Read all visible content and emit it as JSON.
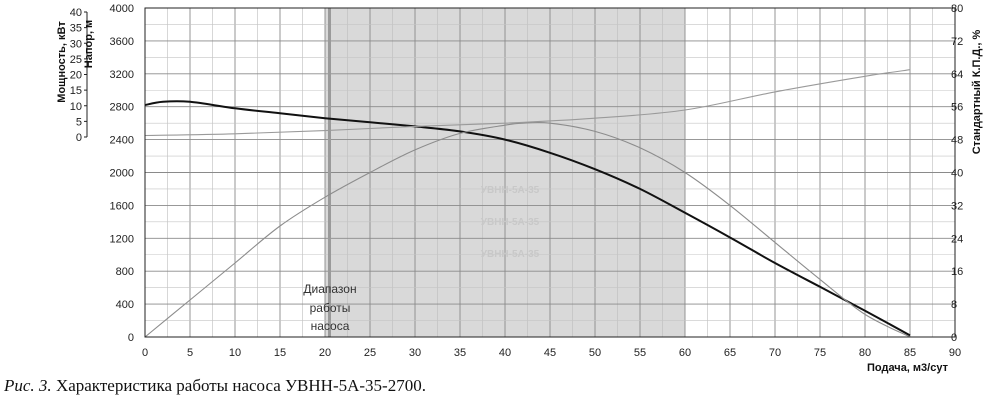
{
  "caption": {
    "figure_label": "Рис. 3.",
    "text": "Характеристика работы насоса УВНН-5А-35-2700."
  },
  "chart_data": {
    "type": "line",
    "title": "",
    "xlabel": "Подача, м3/сут",
    "xlim": [
      0,
      90
    ],
    "x_ticks": [
      0,
      5,
      10,
      15,
      20,
      25,
      30,
      35,
      40,
      45,
      50,
      55,
      60,
      65,
      70,
      75,
      80,
      85,
      90
    ],
    "y_axes": {
      "power": {
        "label": "Мощность, кВт",
        "range": [
          0,
          40
        ],
        "ticks": [
          0,
          5,
          10,
          15,
          20,
          25,
          30,
          35,
          40
        ]
      },
      "head": {
        "label": "Напор, м",
        "range": [
          0,
          4000
        ],
        "ticks": [
          0,
          400,
          800,
          1200,
          1600,
          2000,
          2400,
          2800,
          3200,
          3600,
          4000
        ]
      },
      "efficiency": {
        "label": "Стандартный К.П.Д., %",
        "range": [
          0,
          80
        ],
        "ticks": [
          0,
          8,
          16,
          24,
          32,
          40,
          48,
          56,
          64,
          72,
          80
        ]
      }
    },
    "grid": true,
    "operating_range": {
      "x": [
        20,
        60
      ],
      "label_lines": [
        "Диапазон",
        "работы",
        "насоса"
      ]
    },
    "range_start_marker_x": 20.5,
    "series": [
      {
        "axis": "head",
        "color": "#111111",
        "x": [
          0,
          2,
          5,
          10,
          15,
          20,
          25,
          30,
          35,
          40,
          45,
          50,
          55,
          60,
          65,
          70,
          75,
          80,
          85
        ],
        "y": [
          2820,
          2860,
          2860,
          2780,
          2720,
          2660,
          2610,
          2560,
          2500,
          2400,
          2240,
          2040,
          1800,
          1510,
          1210,
          900,
          610,
          320,
          20
        ]
      },
      {
        "axis": "efficiency",
        "color": "#8c8c8c",
        "x": [
          0,
          5,
          10,
          15,
          20,
          25,
          30,
          35,
          40,
          42,
          45,
          50,
          55,
          60,
          65,
          70,
          75,
          80,
          85
        ],
        "y": [
          0,
          9,
          18,
          27,
          34,
          40,
          45.5,
          49.5,
          51.5,
          52,
          52,
          50,
          46,
          40,
          32,
          23,
          14,
          5.5,
          0
        ]
      },
      {
        "axis": "power",
        "color": "#9a9a9a",
        "x": [
          0,
          10,
          20,
          30,
          40,
          50,
          60,
          70,
          80,
          85
        ],
        "y": [
          24.5,
          24.7,
          25.1,
          25.6,
          26,
          26.6,
          27.6,
          29.8,
          31.7,
          32.5
        ]
      }
    ],
    "faint_curve_labels": [
      "УВНН-5А-35",
      "УВНН-5А-35",
      "УВНН-5А-35"
    ]
  }
}
